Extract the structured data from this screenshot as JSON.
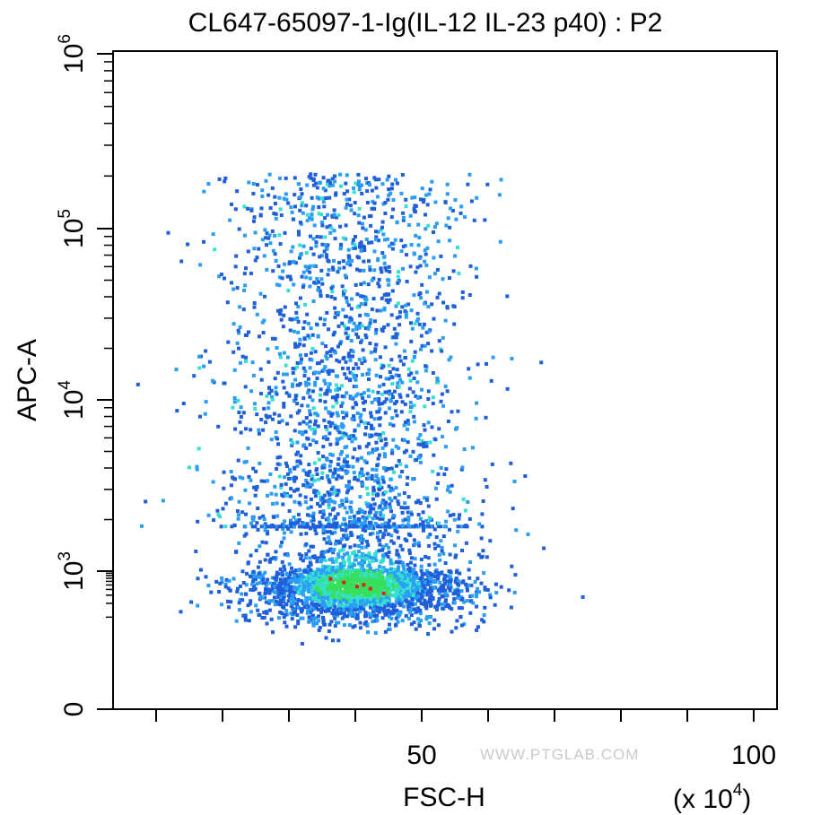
{
  "chart_data": {
    "type": "scatter",
    "title": "CL647-65097-1-Ig(IL-12 IL-23 p40) : P2",
    "xlabel": "FSC-H",
    "ylabel": "APC-A",
    "x_scale": "linear",
    "y_scale": "biexponential",
    "x_unit": "(x 10",
    "x_unit_exp": "4",
    "x_unit_close": ")",
    "xlim": [
      0,
      105
    ],
    "x_ticks": [
      10,
      20,
      30,
      40,
      50,
      60,
      70,
      80,
      90,
      100
    ],
    "x_tick_labels": [
      {
        "value": 50,
        "label": "50"
      },
      {
        "value": 100,
        "label": "100"
      }
    ],
    "y_tick_labels": [
      {
        "value": 0,
        "base": "0",
        "exp": ""
      },
      {
        "value": 1000,
        "base": "10",
        "exp": "3"
      },
      {
        "value": 10000,
        "base": "10",
        "exp": "4"
      },
      {
        "value": 100000,
        "base": "10",
        "exp": "5"
      },
      {
        "value": 1000000,
        "base": "10",
        "exp": "6"
      }
    ],
    "density_colors": [
      "#1f5fd9",
      "#2a9df4",
      "#35e0d0",
      "#36e05a",
      "#c8e021",
      "#e02020"
    ],
    "watermark": "WWW.PTGLAB.COM",
    "population": {
      "main_cluster": {
        "x_center": 40,
        "x_sd": 8,
        "y_center": 500,
        "note_y_range": [
          0,
          2000
        ]
      },
      "tail": {
        "x_center": 38,
        "x_sd": 9,
        "y_range": [
          2000,
          200000
        ]
      }
    },
    "highlighted_points": [
      {
        "x": 40,
        "y": 420
      },
      {
        "x": 42,
        "y": 380
      },
      {
        "x": 38,
        "y": 520
      },
      {
        "x": 44,
        "y": 300
      },
      {
        "x": 36,
        "y": 620
      },
      {
        "x": 41,
        "y": 460
      }
    ],
    "outlier_points": [
      {
        "x": 74,
        "y": 250
      },
      {
        "x": 7,
        "y": 12000
      },
      {
        "x": 33,
        "y": 200000
      },
      {
        "x": 59,
        "y": 2500
      },
      {
        "x": 57,
        "y": 40000
      }
    ],
    "grid": false
  }
}
